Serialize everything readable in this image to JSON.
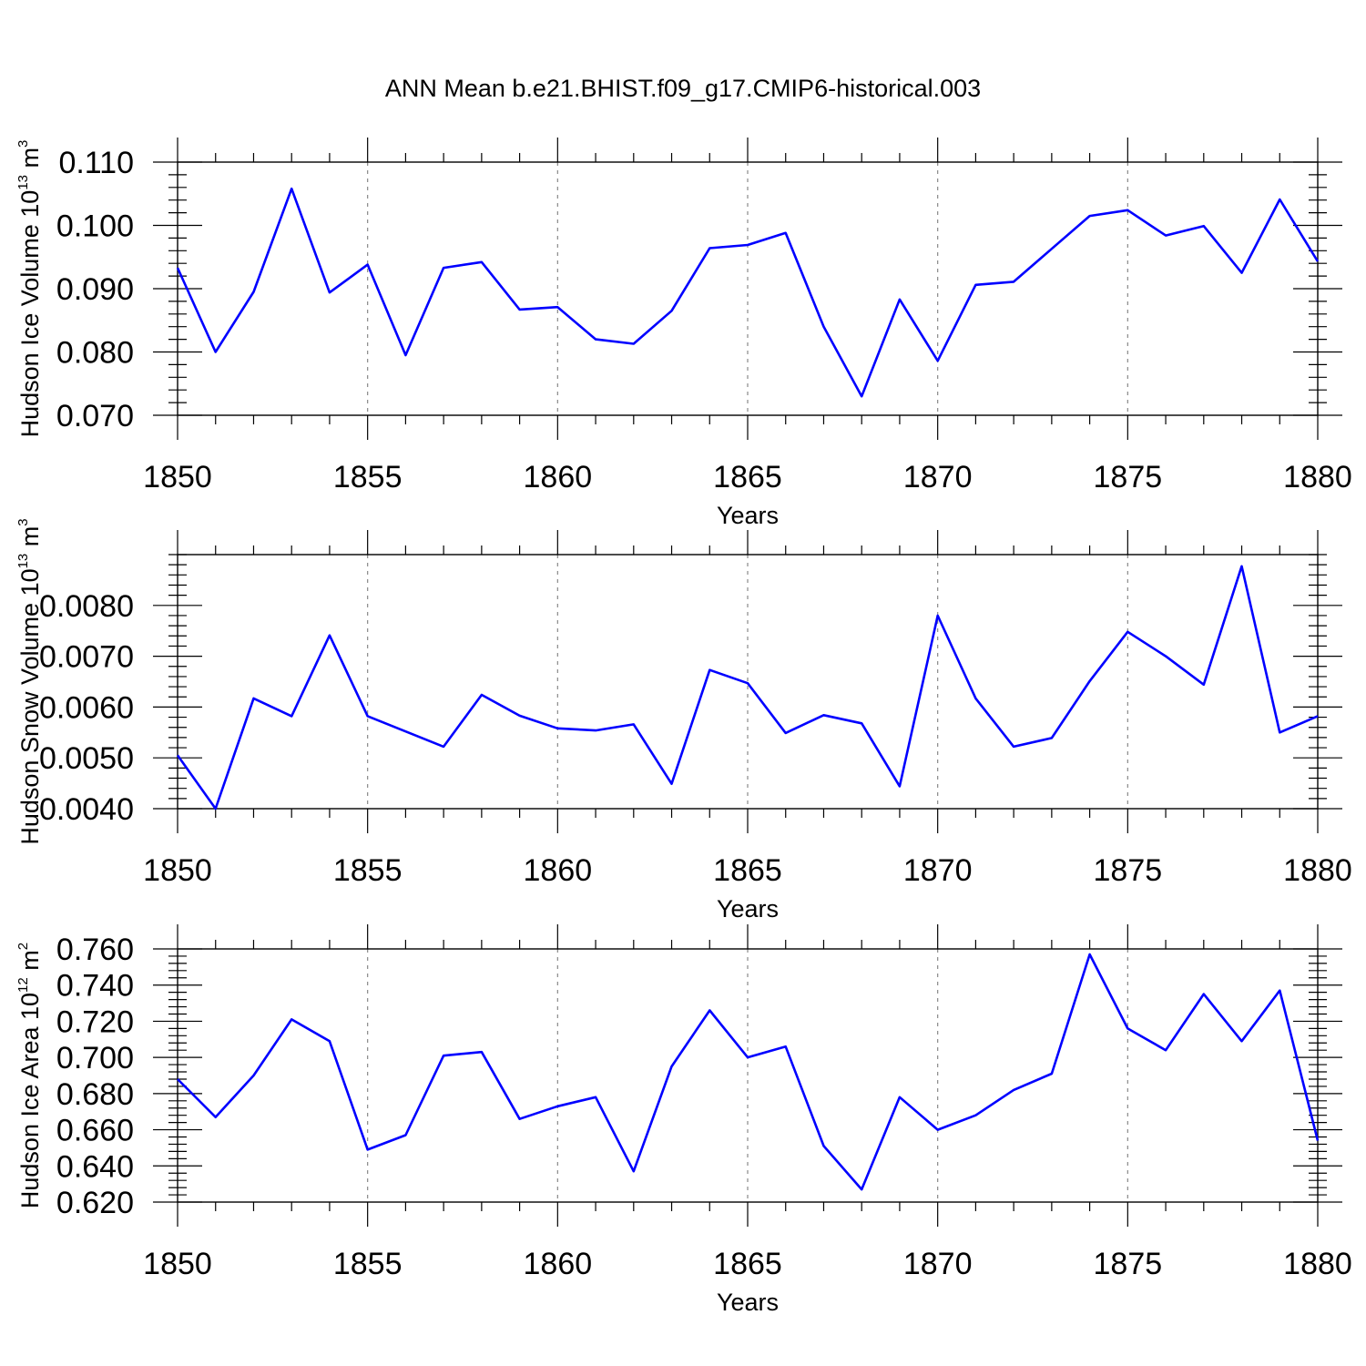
{
  "figure": {
    "title": "ANN Mean b.e21.BHIST.f09_g17.CMIP6-historical.003"
  },
  "chart_data": [
    {
      "type": "line",
      "ylabel": "Hudson Ice Volume 10",
      "ylabel_exp": "13",
      "ylabel_unit": "m",
      "ylabel_unit_exp": "3",
      "xlabel": "Years",
      "xlim": [
        1850,
        1880
      ],
      "ylim": [
        0.07,
        0.11
      ],
      "x_ticks": [
        1850,
        1855,
        1860,
        1865,
        1870,
        1875,
        1880
      ],
      "y_ticks": [
        "0.070",
        "0.080",
        "0.090",
        "0.100",
        "0.110"
      ],
      "color": "#0000ff",
      "grid": "vertical dashed at major x ticks",
      "x": [
        1850,
        1851,
        1852,
        1853,
        1854,
        1855,
        1856,
        1857,
        1858,
        1859,
        1860,
        1861,
        1862,
        1863,
        1864,
        1865,
        1866,
        1867,
        1868,
        1869,
        1870,
        1871,
        1872,
        1873,
        1874,
        1875,
        1876,
        1877,
        1878,
        1879,
        1880
      ],
      "values": [
        0.0933,
        0.08,
        0.0895,
        0.1058,
        0.0894,
        0.0938,
        0.0795,
        0.0933,
        0.0942,
        0.0867,
        0.0871,
        0.082,
        0.0813,
        0.0865,
        0.0964,
        0.0969,
        0.0988,
        0.084,
        0.073,
        0.0883,
        0.0786,
        0.0906,
        0.0911,
        0.0963,
        0.1015,
        0.1024,
        0.0984,
        0.0999,
        0.0925,
        0.1041,
        0.0943
      ]
    },
    {
      "type": "line",
      "ylabel": "Hudson Snow Volume 10",
      "ylabel_exp": "13",
      "ylabel_unit": "m",
      "ylabel_unit_exp": "3",
      "xlabel": "Years",
      "xlim": [
        1850,
        1880
      ],
      "ylim": [
        0.004,
        0.009
      ],
      "x_ticks": [
        1850,
        1855,
        1860,
        1865,
        1870,
        1875,
        1880
      ],
      "y_ticks": [
        "0.0040",
        "0.0050",
        "0.0060",
        "0.0070",
        "0.0080"
      ],
      "color": "#0000ff",
      "grid": "vertical dashed at major x ticks",
      "x": [
        1850,
        1851,
        1852,
        1853,
        1854,
        1855,
        1856,
        1857,
        1858,
        1859,
        1860,
        1861,
        1862,
        1863,
        1864,
        1865,
        1866,
        1867,
        1868,
        1869,
        1870,
        1871,
        1872,
        1873,
        1874,
        1875,
        1876,
        1877,
        1878,
        1879,
        1880
      ],
      "values": [
        0.00505,
        0.004,
        0.00617,
        0.00582,
        0.00741,
        0.00582,
        0.00552,
        0.00522,
        0.00624,
        0.00583,
        0.00558,
        0.00554,
        0.00566,
        0.00449,
        0.00673,
        0.00647,
        0.00549,
        0.00584,
        0.00568,
        0.00444,
        0.0078,
        0.00617,
        0.00522,
        0.00539,
        0.00651,
        0.00748,
        0.007,
        0.00644,
        0.00877,
        0.0055,
        0.00582
      ]
    },
    {
      "type": "line",
      "ylabel": "Hudson Ice Area 10",
      "ylabel_exp": "12",
      "ylabel_unit": "m",
      "ylabel_unit_exp": "2",
      "xlabel": "Years",
      "xlim": [
        1850,
        1880
      ],
      "ylim": [
        0.62,
        0.76
      ],
      "x_ticks": [
        1850,
        1855,
        1860,
        1865,
        1870,
        1875,
        1880
      ],
      "y_ticks": [
        "0.620",
        "0.640",
        "0.660",
        "0.680",
        "0.700",
        "0.720",
        "0.740",
        "0.760"
      ],
      "color": "#0000ff",
      "grid": "vertical dashed at major x ticks",
      "x": [
        1850,
        1851,
        1852,
        1853,
        1854,
        1855,
        1856,
        1857,
        1858,
        1859,
        1860,
        1861,
        1862,
        1863,
        1864,
        1865,
        1866,
        1867,
        1868,
        1869,
        1870,
        1871,
        1872,
        1873,
        1874,
        1875,
        1876,
        1877,
        1878,
        1879,
        1880
      ],
      "values": [
        0.688,
        0.667,
        0.69,
        0.721,
        0.709,
        0.649,
        0.657,
        0.701,
        0.703,
        0.666,
        0.673,
        0.678,
        0.637,
        0.695,
        0.726,
        0.7,
        0.706,
        0.651,
        0.627,
        0.678,
        0.66,
        0.668,
        0.682,
        0.691,
        0.757,
        0.716,
        0.704,
        0.735,
        0.709,
        0.737,
        0.654
      ]
    }
  ]
}
